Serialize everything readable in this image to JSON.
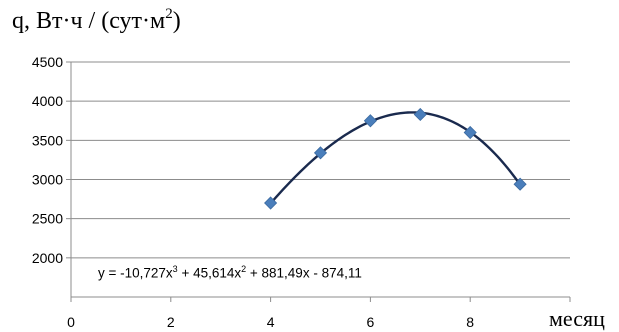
{
  "chart_data": {
    "type": "scatter",
    "ylabel_parts": {
      "prefix": "q, Вт·ч / (сут·м",
      "exp": "2",
      "suffix": ")"
    },
    "xlabel": "месяц",
    "xlim": [
      0,
      10
    ],
    "ylim": [
      1500,
      4500
    ],
    "x_ticks": [
      0,
      2,
      4,
      6,
      8
    ],
    "y_ticks": [
      2000,
      2500,
      3000,
      3500,
      4000,
      4500
    ],
    "grid": "horizontal",
    "series": [
      {
        "x": [
          4,
          5,
          6,
          7,
          8,
          9
        ],
        "y": [
          2700,
          3340,
          3750,
          3830,
          3600,
          2940
        ],
        "marker": "diamond",
        "color": "#4a7ebb"
      }
    ],
    "trendline": {
      "type": "polynomial-3",
      "coefficients": [
        -10.727,
        45.614,
        881.49,
        -874.11
      ],
      "x_range": [
        4,
        9
      ],
      "color": "#1a2a4e"
    },
    "equation_parts": {
      "p1": "y = -10,727x",
      "e1": "3",
      "p2": " + 45,614x",
      "e2": "2",
      "p3": " + 881,49x - 874,11"
    }
  }
}
